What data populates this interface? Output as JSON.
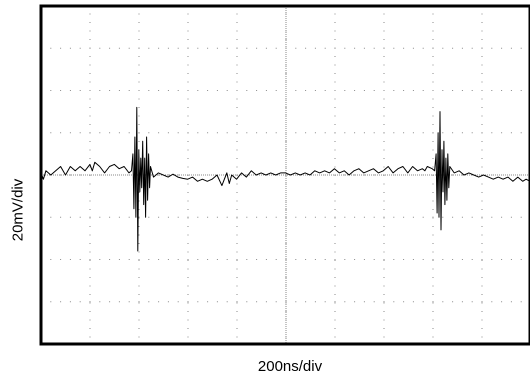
{
  "chart_data": {
    "type": "line",
    "title": "",
    "xlabel": "200ns/div",
    "ylabel": "20mV/div",
    "grid": true,
    "divisions": {
      "x": 10,
      "y": 8
    },
    "xlim": [
      0,
      10
    ],
    "ylim": [
      -4,
      4
    ],
    "colors": {
      "trace": "#000000",
      "frame": "#000000",
      "grid": "#8a8a8a",
      "background": "#ffffff"
    },
    "series": [
      {
        "values": [
          [
            0.0,
            0.05
          ],
          [
            0.05,
            -0.1
          ],
          [
            0.1,
            0.1
          ],
          [
            0.2,
            0.0
          ],
          [
            0.3,
            0.1
          ],
          [
            0.4,
            0.2
          ],
          [
            0.5,
            0.0
          ],
          [
            0.6,
            0.2
          ],
          [
            0.7,
            0.1
          ],
          [
            0.8,
            0.2
          ],
          [
            0.9,
            0.1
          ],
          [
            1.0,
            0.25
          ],
          [
            1.05,
            0.1
          ],
          [
            1.1,
            0.3
          ],
          [
            1.2,
            0.2
          ],
          [
            1.3,
            0.05
          ],
          [
            1.4,
            0.2
          ],
          [
            1.5,
            0.25
          ],
          [
            1.6,
            0.15
          ],
          [
            1.7,
            0.2
          ],
          [
            1.8,
            0.05
          ],
          [
            1.85,
            0.1
          ],
          [
            1.88,
            0.5
          ],
          [
            1.9,
            -0.8
          ],
          [
            1.92,
            0.9
          ],
          [
            1.94,
            -1.0
          ],
          [
            1.96,
            1.6
          ],
          [
            1.98,
            -1.8
          ],
          [
            2.0,
            0.6
          ],
          [
            2.02,
            -0.4
          ],
          [
            2.04,
            0.4
          ],
          [
            2.06,
            -0.3
          ],
          [
            2.08,
            0.8
          ],
          [
            2.1,
            -0.7
          ],
          [
            2.12,
            0.4
          ],
          [
            2.14,
            -1.0
          ],
          [
            2.16,
            0.9
          ],
          [
            2.18,
            -0.6
          ],
          [
            2.2,
            0.5
          ],
          [
            2.22,
            -0.3
          ],
          [
            2.24,
            0.2
          ],
          [
            2.3,
            -0.05
          ],
          [
            2.4,
            0.05
          ],
          [
            2.5,
            0.0
          ],
          [
            2.6,
            -0.05
          ],
          [
            2.7,
            0.02
          ],
          [
            2.8,
            -0.05
          ],
          [
            2.9,
            -0.08
          ],
          [
            3.0,
            -0.1
          ],
          [
            3.1,
            -0.05
          ],
          [
            3.2,
            -0.15
          ],
          [
            3.3,
            -0.1
          ],
          [
            3.4,
            -0.15
          ],
          [
            3.5,
            -0.1
          ],
          [
            3.6,
            0.0
          ],
          [
            3.7,
            -0.25
          ],
          [
            3.8,
            0.05
          ],
          [
            3.85,
            -0.2
          ],
          [
            3.9,
            0.0
          ],
          [
            4.0,
            -0.1
          ],
          [
            4.1,
            0.05
          ],
          [
            4.2,
            -0.05
          ],
          [
            4.3,
            0.1
          ],
          [
            4.4,
            0.0
          ],
          [
            4.5,
            0.05
          ],
          [
            4.6,
            0.0
          ],
          [
            4.7,
            0.05
          ],
          [
            4.8,
            0.0
          ],
          [
            4.9,
            0.05
          ],
          [
            5.0,
            0.05
          ],
          [
            5.1,
            0.0
          ],
          [
            5.2,
            0.05
          ],
          [
            5.3,
            0.0
          ],
          [
            5.4,
            0.05
          ],
          [
            5.5,
            0.0
          ],
          [
            5.6,
            0.1
          ],
          [
            5.7,
            0.05
          ],
          [
            5.8,
            0.1
          ],
          [
            5.9,
            0.05
          ],
          [
            6.0,
            0.15
          ],
          [
            6.1,
            0.05
          ],
          [
            6.2,
            0.1
          ],
          [
            6.3,
            0.0
          ],
          [
            6.4,
            0.1
          ],
          [
            6.5,
            0.15
          ],
          [
            6.6,
            0.05
          ],
          [
            6.7,
            0.1
          ],
          [
            6.8,
            0.15
          ],
          [
            6.9,
            0.05
          ],
          [
            7.0,
            0.1
          ],
          [
            7.1,
            0.2
          ],
          [
            7.2,
            0.05
          ],
          [
            7.3,
            0.15
          ],
          [
            7.4,
            0.2
          ],
          [
            7.5,
            0.05
          ],
          [
            7.6,
            0.2
          ],
          [
            7.7,
            0.1
          ],
          [
            7.8,
            0.15
          ],
          [
            7.85,
            0.1
          ],
          [
            7.9,
            0.2
          ],
          [
            8.0,
            0.15
          ],
          [
            8.05,
            0.1
          ],
          [
            8.08,
            0.5
          ],
          [
            8.1,
            -0.9
          ],
          [
            8.12,
            1.0
          ],
          [
            8.14,
            -1.0
          ],
          [
            8.16,
            1.5
          ],
          [
            8.18,
            -1.3
          ],
          [
            8.2,
            0.6
          ],
          [
            8.22,
            -0.4
          ],
          [
            8.24,
            0.8
          ],
          [
            8.26,
            -0.7
          ],
          [
            8.28,
            0.4
          ],
          [
            8.3,
            -0.6
          ],
          [
            8.32,
            0.5
          ],
          [
            8.34,
            -0.3
          ],
          [
            8.36,
            0.2
          ],
          [
            8.45,
            0.05
          ],
          [
            8.55,
            0.1
          ],
          [
            8.65,
            0.0
          ],
          [
            8.75,
            0.05
          ],
          [
            8.85,
            0.0
          ],
          [
            8.95,
            -0.05
          ],
          [
            9.05,
            0.0
          ],
          [
            9.15,
            -0.05
          ],
          [
            9.25,
            -0.1
          ],
          [
            9.35,
            -0.05
          ],
          [
            9.45,
            -0.1
          ],
          [
            9.55,
            -0.05
          ],
          [
            9.65,
            -0.15
          ],
          [
            9.75,
            -0.05
          ],
          [
            9.85,
            -0.15
          ],
          [
            9.92,
            -0.1
          ],
          [
            10.0,
            -0.15
          ]
        ]
      }
    ]
  }
}
